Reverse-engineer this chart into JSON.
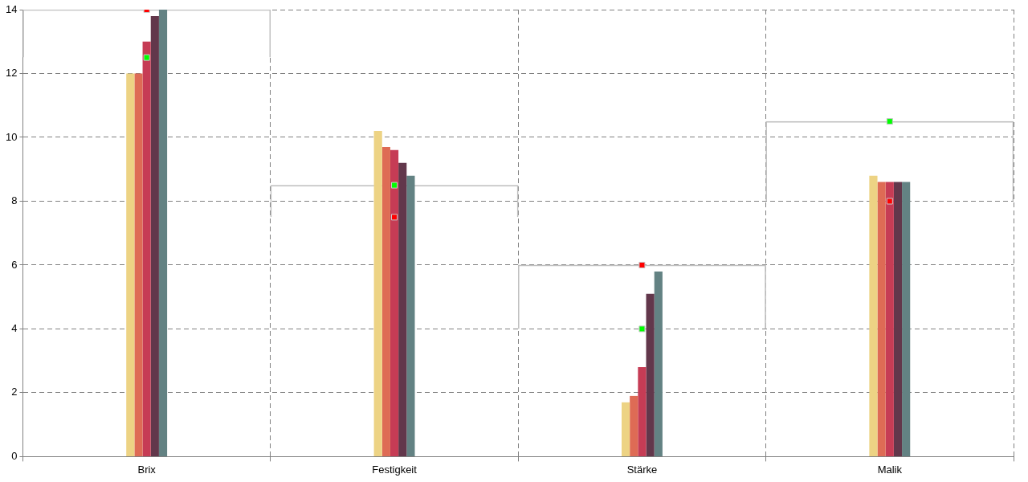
{
  "chart_data": {
    "type": "bar",
    "categories": [
      "Brix",
      "Festigkeit",
      "Stärke",
      "Malik"
    ],
    "series": [
      {
        "color": "#edd384",
        "values": [
          12,
          10.2,
          1.7,
          8.8
        ]
      },
      {
        "color": "#de6b55",
        "values": [
          12,
          9.7,
          1.9,
          8.6
        ]
      },
      {
        "color": "#c63c55",
        "values": [
          13,
          9.6,
          2.8,
          8.6
        ]
      },
      {
        "color": "#62374b",
        "values": [
          13.8,
          9.2,
          5.1,
          8.6
        ]
      },
      {
        "color": "#638283",
        "values": [
          14,
          8.8,
          5.8,
          8.6
        ]
      },
      {
        "type": "bar",
        "color": "#c0c0c0",
        "base": [
          12.5,
          7.5,
          4,
          8
        ],
        "values": [
          1.5,
          1,
          2,
          2.5
        ]
      },
      {
        "type": "scatter",
        "color": "#00ff00",
        "values": [
          12.5,
          8.5,
          4,
          10.5
        ]
      },
      {
        "type": "scatter",
        "color": "#ff0000",
        "values": [
          14,
          7.5,
          6,
          8
        ]
      }
    ],
    "ylim": [
      0,
      14
    ],
    "yticks": [
      0,
      2,
      4,
      6,
      8,
      10,
      12,
      14
    ],
    "grid": true,
    "legend": false,
    "marker": "square"
  }
}
